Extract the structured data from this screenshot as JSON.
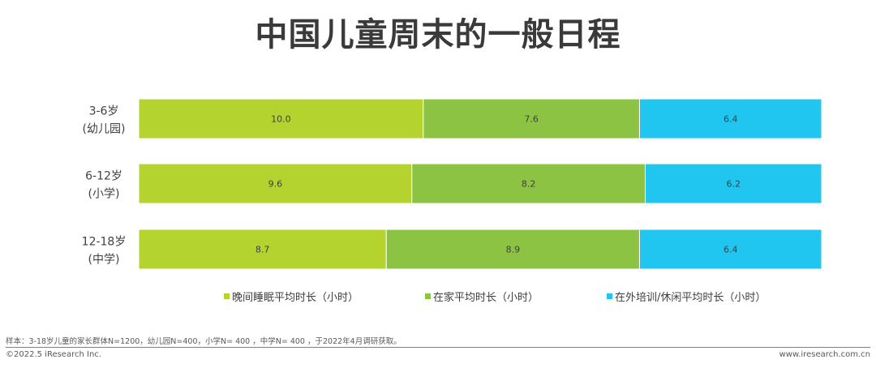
{
  "title": "中国儿童周末的一般日程",
  "colors": {
    "sleep": "#b4d32f",
    "home": "#8cc342",
    "outside": "#20c6ef"
  },
  "chart_data": {
    "type": "bar",
    "orientation": "horizontal",
    "stacked": true,
    "normalized": true,
    "title": "中国儿童周末的一般日程",
    "categories": [
      [
        "3-6岁",
        "(幼儿园)"
      ],
      [
        "6-12岁",
        "(小学)"
      ],
      [
        "12-18岁",
        "(中学)"
      ]
    ],
    "series": [
      {
        "name": "晚间睡眠平均时长（小时）",
        "values": [
          "10.0",
          "9.6",
          "8.7"
        ],
        "color": "#b4d32f"
      },
      {
        "name": "在家平均时长（小时）",
        "values": [
          "7.6",
          "8.2",
          "8.9"
        ],
        "color": "#8cc342"
      },
      {
        "name": "在外培训/休闲平均时长（小时）",
        "values": [
          "6.4",
          "6.2",
          "6.4"
        ],
        "color": "#20c6ef"
      }
    ],
    "legend": "bottom",
    "grid": false
  },
  "footer": {
    "note": "样本：3-18岁儿童的家长群体N=1200，幼儿园N=400，小学N= 400 ，中学N= 400 ，于2022年4月调研获取。",
    "copyright": "©2022.5 iResearch Inc.",
    "site": "www.iresearch.com.cn"
  }
}
